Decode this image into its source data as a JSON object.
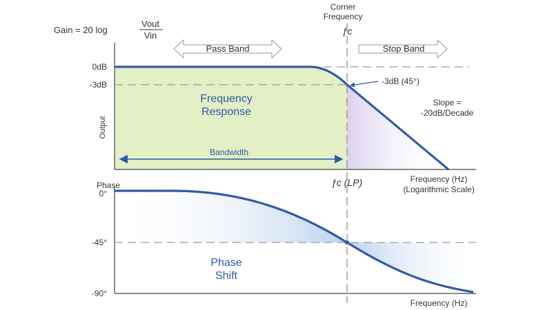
{
  "gain_formula": {
    "prefix": "Gain = 20 log",
    "numerator": "Vout",
    "denominator": "Vin"
  },
  "corner": {
    "line1": "Corner",
    "line2": "Frequency",
    "symbol": "ƒc",
    "lp_label": "ƒc (LP)"
  },
  "bands": {
    "pass": "Pass Band",
    "stop": "Stop Band",
    "bandwidth": "Bandwidth"
  },
  "magnitude": {
    "y_axis_label": "Output",
    "ticks": {
      "zero": "0dB",
      "minus3": "-3dB"
    },
    "region_title_1": "Frequency",
    "region_title_2": "Response",
    "point_label": "-3dB (45°)",
    "slope_1": "Slope =",
    "slope_2": "-20dB/Decade",
    "x_label_1": "Frequency (Hz)",
    "x_label_2": "(Logarithmic Scale)"
  },
  "phase": {
    "title": "Phase",
    "ticks": {
      "zero": "0°",
      "minus45": "-45°",
      "minus90": "-90°"
    },
    "region_title_1": "Phase",
    "region_title_2": "Shift",
    "x_label": "Frequency (Hz)"
  },
  "colors": {
    "curve": "#2f5aa8",
    "passband_fill": "#e3efc4",
    "stopband_fill": "#ece6f7",
    "phase_fill": "#c9daf0",
    "dashed": "#9a9a9a",
    "text_blue": "#2f5aa8"
  }
}
